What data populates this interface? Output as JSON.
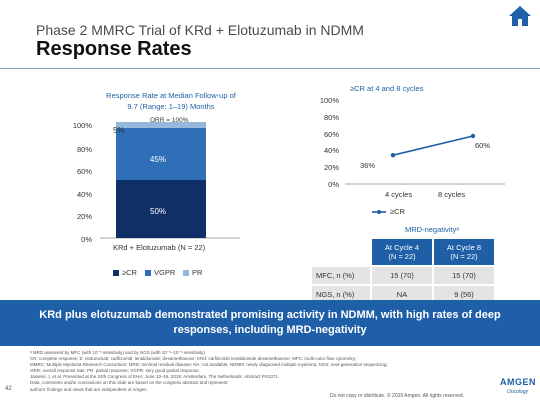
{
  "header": {
    "title_small": "Phase 2 MMRC Trial of KRd + Elotuzumab in NDMM",
    "title_large": "Response Rates"
  },
  "icons": {
    "home": "home-icon"
  },
  "colors": {
    "brand_blue": "#1f5fa8",
    "bar_dark": "#0f2f66",
    "bar_mid": "#2f6fb8",
    "bar_light": "#93b8dc",
    "table_cell": "#e4e4e4"
  },
  "left_chart": {
    "heading_line1": "Response Rate at Median Follow-up of",
    "heading_line2": "9.7 (Range: 1–19) Months",
    "orr_label": "ORR = 100%",
    "legend": [
      "≥CR",
      "VGPR",
      "PR"
    ]
  },
  "right_chart": {
    "heading": "≥CR at 4 and 8 cycles",
    "legend": "≥CR"
  },
  "chart_data": [
    {
      "type": "bar",
      "stacked": true,
      "title": "Response Rate at Median Follow-up of 9.7 (Range: 1–19) Months",
      "categories": [
        "KRd + Elotuzumab (N = 22)"
      ],
      "series": [
        {
          "name": "≥CR",
          "values": [
            50
          ],
          "label": "50%",
          "color": "#0f2f66"
        },
        {
          "name": "VGPR",
          "values": [
            45
          ],
          "label": "45%",
          "color": "#2f6fb8"
        },
        {
          "name": "PR",
          "values": [
            5
          ],
          "label": "5%",
          "color": "#93b8dc"
        }
      ],
      "annotation": "ORR = 100%",
      "ylim": [
        0,
        100
      ],
      "yticks": [
        "0%",
        "20%",
        "40%",
        "60%",
        "80%",
        "100%"
      ],
      "legend_position": "bottom"
    },
    {
      "type": "line",
      "title": "≥CR at 4 and 8 cycles",
      "categories": [
        "4 cycles",
        "8 cycles"
      ],
      "series": [
        {
          "name": "≥CR",
          "values": [
            36,
            60
          ],
          "labels": [
            "36%",
            "60%"
          ],
          "color": "#1f5fa8"
        }
      ],
      "ylim": [
        0,
        100
      ],
      "yticks": [
        "0%",
        "20%",
        "40%",
        "60%",
        "80%",
        "100%"
      ],
      "legend_position": "bottom"
    }
  ],
  "mrd": {
    "title": "MRD-negativityᵃ",
    "col_headers": [
      [
        "At Cycle 4",
        "(N = 22)"
      ],
      [
        "At Cycle 8",
        "(N = 22)"
      ]
    ],
    "rows": [
      {
        "label": "MFC, n (%)",
        "values": [
          "15 (70)",
          "15 (70)"
        ]
      },
      {
        "label": "NGS, n (%)",
        "values": [
          "NA",
          "9 (56)"
        ]
      }
    ]
  },
  "banner": "KRd plus elotuzumab demonstrated promising activity in NDMM, with high rates of deep responses, including MRD-negativity",
  "footnotes": [
    "ᵃ MRD assessed by MFC (with 10⁻⁵ sensitivity) and by NGS (with 10⁻⁵–10⁻⁶ sensitivity).",
    "CR: complete response; E: elotuzumab; carfilzomib; lenalidomide; dexamethasone; KRd: carfilzomib lenalidomide dexamethasone; MFC: multi-color flow cytometry;",
    "MMRC: Multiple Myeloma Research Consortium; MRD: minimal residual disease; NA: not available; NDMM: newly diagnosed multiple myeloma; NGS: next-generation sequencing;",
    "ORR: overall response rate; PR: partial response; VGPR: very good partial response.",
    "Jasielec J, et al. Presented at the 24th Congress of EHA; June 13–16, 2019; Amsterdam, The Netherlands. Abstract PS1371.",
    "Data, comments and/or conclusions on this slide are based on the congress abstract and represent",
    "authors' findings and views that are independent of Amgen."
  ],
  "slide_number": "42",
  "disclaimer": "Do not copy or distribute. © 2019 Amgen. All rights reserved.",
  "logo": {
    "name": "AMGEN",
    "sub": "Oncology"
  }
}
